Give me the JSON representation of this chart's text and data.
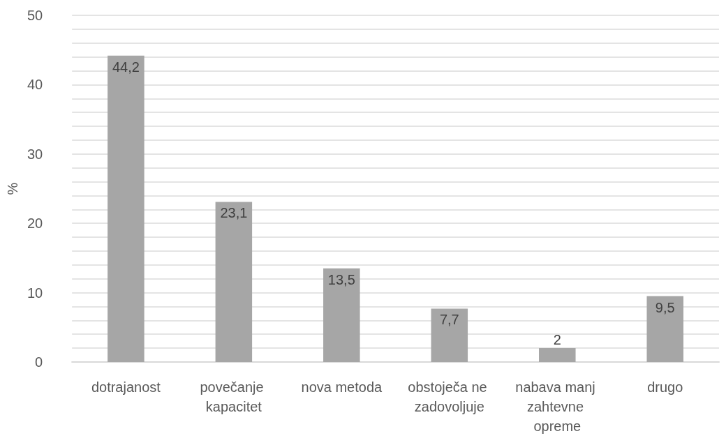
{
  "chart_data": {
    "type": "bar",
    "ylabel": "%",
    "categories": [
      "dotrajanost",
      "povečanje kapacitet",
      "nova metoda",
      "obstoječa ne zadovoljuje",
      "nabava manj zahtevne opreme",
      "drugo"
    ],
    "values": [
      44.2,
      23.1,
      13.5,
      7.7,
      2,
      9.5
    ],
    "value_labels": [
      "44,2",
      "23,1",
      "13,5",
      "7,7",
      "2",
      "9,5"
    ],
    "color": "#a6a6a6",
    "ylim": [
      0,
      50
    ],
    "yticks": [
      0,
      {
        "value": 2,
        "label": null
      },
      {
        "value": 4,
        "label": null
      },
      {
        "value": 6,
        "label": null
      },
      {
        "value": 8,
        "label": null
      },
      10,
      {
        "value": 12,
        "label": null
      },
      {
        "value": 14,
        "label": null
      },
      {
        "value": 16,
        "label": null
      },
      {
        "value": 18,
        "label": null
      },
      20,
      {
        "value": 22,
        "label": null
      },
      {
        "value": 24,
        "label": null
      },
      {
        "value": 26,
        "label": null
      },
      {
        "value": 28,
        "label": null
      },
      30,
      {
        "value": 32,
        "label": null
      },
      {
        "value": 34,
        "label": null
      },
      {
        "value": 36,
        "label": null
      },
      {
        "value": 38,
        "label": null
      },
      40,
      {
        "value": 42,
        "label": null
      },
      {
        "value": 44,
        "label": null
      },
      {
        "value": 46,
        "label": null
      },
      {
        "value": 48,
        "label": null
      },
      50
    ],
    "grid": true
  }
}
